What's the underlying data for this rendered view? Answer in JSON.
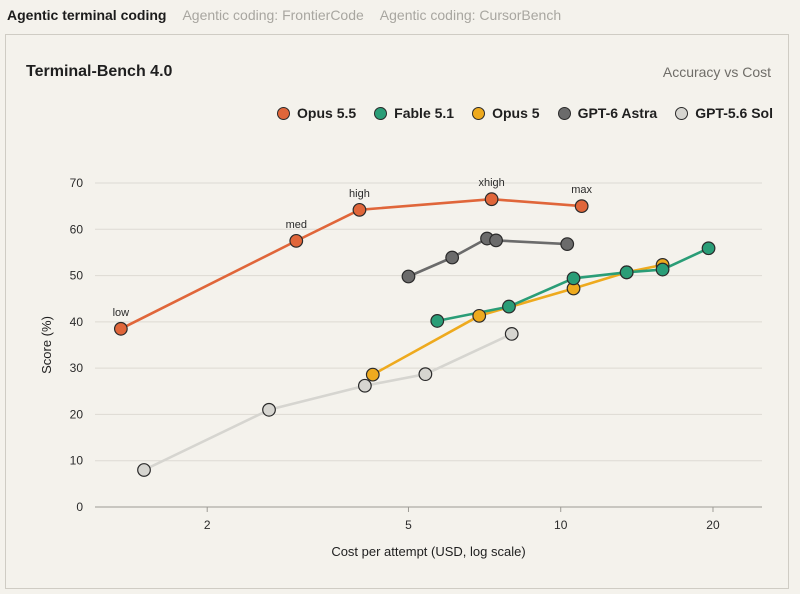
{
  "tabs": [
    {
      "label": "Agentic terminal coding",
      "active": true
    },
    {
      "label": "Agentic coding: FrontierCode",
      "active": false
    },
    {
      "label": "Agentic coding: CursorBench",
      "active": false
    }
  ],
  "chart_data": {
    "type": "line",
    "title": "Terminal-Bench 4.0",
    "subtitle": "Accuracy vs Cost",
    "xlabel": "Cost per attempt (USD, log scale)",
    "ylabel": "Score (%)",
    "x_scale": "log",
    "xlim": [
      1.2,
      25
    ],
    "ylim": [
      0,
      70
    ],
    "x_ticks": [
      2,
      5,
      10,
      20
    ],
    "y_ticks": [
      0,
      10,
      20,
      30,
      40,
      50,
      60,
      70
    ],
    "grid": "horizontal",
    "legend_position": "top-right",
    "series": [
      {
        "name": "Opus 5.5",
        "color": "#e0663a",
        "points": [
          {
            "x": 1.35,
            "y": 38.5,
            "label": "low"
          },
          {
            "x": 3.0,
            "y": 57.5,
            "label": "med"
          },
          {
            "x": 4.0,
            "y": 64.2,
            "label": "high"
          },
          {
            "x": 7.3,
            "y": 66.5,
            "label": "xhigh"
          },
          {
            "x": 11.0,
            "y": 65.0,
            "label": "max"
          }
        ]
      },
      {
        "name": "Fable 5.1",
        "color": "#2a9d77",
        "points": [
          {
            "x": 5.7,
            "y": 40.2
          },
          {
            "x": 7.9,
            "y": 43.3
          },
          {
            "x": 10.6,
            "y": 49.4
          },
          {
            "x": 13.5,
            "y": 50.7
          },
          {
            "x": 15.9,
            "y": 51.3
          },
          {
            "x": 19.6,
            "y": 55.9
          }
        ]
      },
      {
        "name": "Opus 5",
        "color": "#eeaa1e",
        "points": [
          {
            "x": 4.25,
            "y": 28.6
          },
          {
            "x": 6.9,
            "y": 41.3
          },
          {
            "x": 10.6,
            "y": 47.2
          },
          {
            "x": 13.5,
            "y": 50.7
          },
          {
            "x": 15.9,
            "y": 52.3
          }
        ]
      },
      {
        "name": "GPT-6 Astra",
        "color": "#6b6b6b",
        "points": [
          {
            "x": 5.0,
            "y": 49.8
          },
          {
            "x": 6.1,
            "y": 53.9
          },
          {
            "x": 7.15,
            "y": 58.0
          },
          {
            "x": 7.45,
            "y": 57.6
          },
          {
            "x": 10.3,
            "y": 56.8
          }
        ]
      },
      {
        "name": "GPT-5.6 Sol",
        "color": "#d6d5d0",
        "points": [
          {
            "x": 1.5,
            "y": 8.0
          },
          {
            "x": 2.65,
            "y": 21.0
          },
          {
            "x": 4.1,
            "y": 26.2
          },
          {
            "x": 5.4,
            "y": 28.7
          },
          {
            "x": 8.0,
            "y": 37.4
          }
        ]
      }
    ]
  }
}
